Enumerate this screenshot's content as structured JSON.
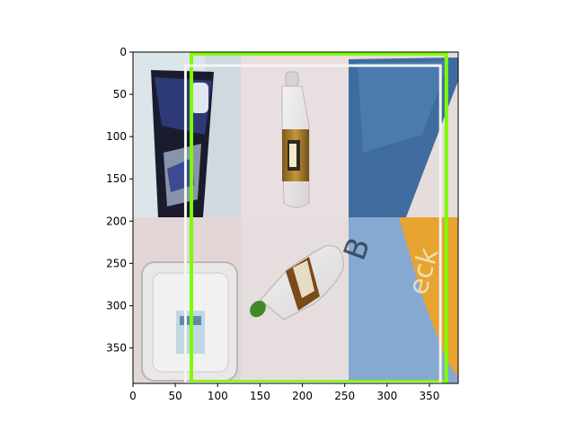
{
  "chart_data": {
    "type": "image",
    "title": "",
    "xlabel": "",
    "ylabel": "",
    "xlim": [
      0,
      384
    ],
    "ylim": [
      392,
      0
    ],
    "y_inverted": true,
    "grid": false,
    "xticks": [
      0,
      50,
      100,
      150,
      200,
      250,
      300,
      350
    ],
    "yticks": [
      0,
      50,
      100,
      150,
      200,
      250,
      300,
      350
    ],
    "image_grid": {
      "rows": 2,
      "cols": 3,
      "tiles": [
        {
          "row": 0,
          "col": 0,
          "content": "black and blue snack wrapper",
          "bg": "#d9e4ea"
        },
        {
          "row": 0,
          "col": 1,
          "content": "plastic bottle with brown liquid",
          "bg": "#e8dddf"
        },
        {
          "row": 0,
          "col": 2,
          "content": "blue cardboard",
          "bg": "#e7dedd"
        },
        {
          "row": 1,
          "col": 0,
          "content": "clear plastic clamshell container",
          "bg": "#e3d8d6"
        },
        {
          "row": 1,
          "col": 1,
          "content": "plastic bottle with green cap",
          "bg": "#e6dede"
        },
        {
          "row": 1,
          "col": 2,
          "content": "blue and orange printed cardboard",
          "bg": "#7fa6cf"
        }
      ]
    },
    "boxes": [
      {
        "color": "#7cfc00",
        "x0": 69,
        "y0": 2,
        "x1": 370,
        "y1": 390
      },
      {
        "color": "#f4f4f4",
        "x0": 62,
        "y0": 16,
        "x1": 363,
        "y1": 392
      }
    ]
  }
}
